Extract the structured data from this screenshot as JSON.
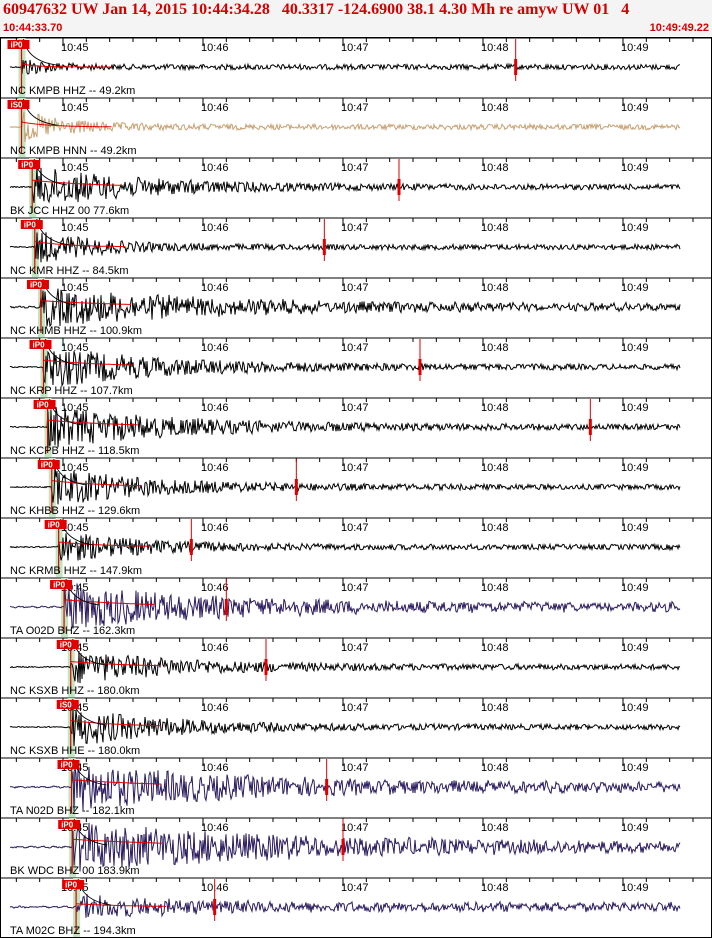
{
  "header": {
    "title": "60947632 UW Jan 14, 2015 10:44:34.28   40.3317 -124.6900 38.1 4.30 Mh re amyw UW 01   4",
    "start_time": "10:44:33.70",
    "end_time": "10:49:49.22"
  },
  "colors": {
    "title": "#d40000",
    "pick": "#e00000",
    "pick_window": "#bfe6bf",
    "trace": "#000000",
    "trace_accel": "#c8a070",
    "trace_ta": "#2a1a5e"
  },
  "chart_data": {
    "type": "line",
    "title": "60947632 UW Jan 14, 2015 10:44:34.28   40.3317 -124.6900 38.1 4.30 Mh re amyw UW 01   4",
    "xlim": [
      "10:44:33.70",
      "10:49:49.22"
    ],
    "time_labels": [
      "10:45",
      "10:46",
      "10:47",
      "10:48",
      "10:49"
    ],
    "origin_time": "10:44:34.28",
    "traces": [
      {
        "label": "NC KMPB HHZ -- 49.2km",
        "distance_km": 49.2,
        "pick": "P",
        "badge": "P",
        "color": "black",
        "s_pick": "10:48:14",
        "amplitude": 0.35,
        "duration_s": 10
      },
      {
        "label": "NC KMPB HNN -- 49.2km",
        "distance_km": 49.2,
        "pick": "S",
        "badge": "S",
        "color": "tan",
        "s_pick": "",
        "amplitude": 0.55,
        "duration_s": 20
      },
      {
        "label": "BK JCC HHZ 00 77.6km",
        "distance_km": 77.6,
        "pick": "P",
        "badge": "P",
        "color": "black",
        "s_pick": "10:47:24",
        "amplitude": 0.75,
        "duration_s": 45
      },
      {
        "label": "NC KMR HHZ -- 84.5km",
        "distance_km": 84.5,
        "pick": "P",
        "badge": "P",
        "color": "black",
        "s_pick": "10:46:52",
        "amplitude": 0.6,
        "duration_s": 25
      },
      {
        "label": "NC KHMB HHZ -- 100.9km",
        "distance_km": 100.9,
        "pick": "P",
        "badge": "P",
        "color": "black",
        "s_pick": "",
        "amplitude": 0.7,
        "duration_s": 70
      },
      {
        "label": "NC KRP HHZ -- 107.7km",
        "distance_km": 107.7,
        "pick": "P",
        "badge": "P",
        "color": "black",
        "s_pick": "10:47:33",
        "amplitude": 0.75,
        "duration_s": 50
      },
      {
        "label": "NC KCPB HHZ -- 118.5km",
        "distance_km": 118.5,
        "pick": "P",
        "badge": "P",
        "color": "black",
        "s_pick": "10:48:46",
        "amplitude": 0.75,
        "duration_s": 55
      },
      {
        "label": "NC KHBB HHZ -- 129.6km",
        "distance_km": 129.6,
        "pick": "P",
        "badge": "P",
        "color": "black",
        "s_pick": "10:46:40",
        "amplitude": 0.7,
        "duration_s": 40
      },
      {
        "label": "NC KRMB HHZ -- 147.9km",
        "distance_km": 147.9,
        "pick": "P",
        "badge": "P",
        "color": "black",
        "s_pick": "10:45:55",
        "amplitude": 0.55,
        "duration_s": 35
      },
      {
        "label": "TA O02D BHZ -- 162.3km",
        "distance_km": 162.3,
        "pick": "P",
        "badge": "P",
        "color": "ta",
        "s_pick": "10:46:10",
        "amplitude": 0.8,
        "duration_s": 60
      },
      {
        "label": "NC KSXB HHZ -- 180.0km",
        "distance_km": 180.0,
        "pick": "P",
        "badge": "P",
        "color": "black",
        "s_pick": "10:46:27",
        "amplitude": 0.6,
        "duration_s": 45
      },
      {
        "label": "NC KSXB HHE -- 180.0km",
        "distance_km": 180.0,
        "pick": "S",
        "badge": "S",
        "color": "black",
        "s_pick": "",
        "amplitude": 0.7,
        "duration_s": 40
      },
      {
        "label": "TA N02D BHZ -- 182.1km",
        "distance_km": 182.1,
        "pick": "P",
        "badge": "P",
        "color": "ta",
        "s_pick": "10:46:53",
        "amplitude": 0.8,
        "duration_s": 70
      },
      {
        "label": "BK WDC BHZ 00 183.9km",
        "distance_km": 183.9,
        "pick": "P",
        "badge": "P",
        "color": "ta",
        "s_pick": "10:47:00",
        "amplitude": 0.85,
        "duration_s": 90
      },
      {
        "label": "TA M02C BHZ -- 194.3km",
        "distance_km": 194.3,
        "pick": "P",
        "badge": "P",
        "color": "ta",
        "s_pick": "10:46:05",
        "amplitude": 0.35,
        "duration_s": 40
      }
    ]
  }
}
